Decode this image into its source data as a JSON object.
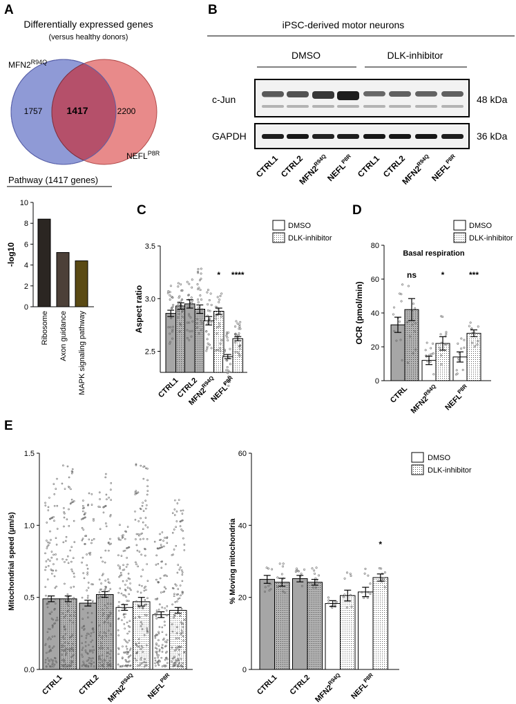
{
  "panel_letters": {
    "a": "A",
    "b": "B",
    "c": "C",
    "d": "D",
    "e": "E"
  },
  "colors": {
    "ctrl_bar": "#a6a6a6",
    "white_bar": "#ffffff",
    "venn_blue": "#8f9ad6",
    "venn_red": "#e88a8a",
    "venn_overlap": "#b5506a",
    "black": "#000000"
  },
  "panelA": {
    "title": "Differentially expressed genes",
    "subtitle": "(versus healthy donors)",
    "venn": {
      "left_label_base": "MFN2",
      "left_label_sup": "R94Q",
      "right_label_base": "NEFL",
      "right_label_sup": "P8R",
      "left_only": "1757",
      "overlap": "1417",
      "right_only": "2200"
    },
    "pathway_title": "Pathway (1417 genes)"
  },
  "panelB": {
    "header": "iPSC-derived motor neurons",
    "group1": "DMSO",
    "group2": "DLK-inhibitor",
    "blot1_label": "c-Jun",
    "blot1_size": "48 kDa",
    "blot2_label": "GAPDH",
    "blot2_size": "36 kDa",
    "lanes": [
      {
        "base": "CTRL1",
        "sup": ""
      },
      {
        "base": "CTRL2",
        "sup": ""
      },
      {
        "base": "MFN2",
        "sup": "R94Q"
      },
      {
        "base": "NEFL",
        "sup": "P8R"
      },
      {
        "base": "CTRL1",
        "sup": ""
      },
      {
        "base": "CTRL2",
        "sup": ""
      },
      {
        "base": "MFN2",
        "sup": "R94Q"
      },
      {
        "base": "NEFL",
        "sup": "P8R"
      }
    ],
    "cjun_intensity": [
      0.55,
      0.6,
      0.8,
      1.0,
      0.45,
      0.5,
      0.48,
      0.5
    ],
    "gapdh_intensity": [
      0.9,
      0.95,
      0.85,
      0.9,
      0.95,
      0.95,
      0.95,
      0.9
    ]
  },
  "legend": {
    "dmso": "DMSO",
    "dlk": "DLK-inhibitor"
  },
  "chart_data": [
    {
      "id": "A",
      "type": "bar",
      "ylabel": "-log10",
      "ylim": [
        0,
        10
      ],
      "yticks": [
        0,
        2,
        4,
        6,
        8,
        10
      ],
      "categories": [
        "Ribosome",
        "Axon guidance",
        "MAPK signaling pathway"
      ],
      "values": [
        8.4,
        5.2,
        4.4
      ],
      "bar_colors": [
        "#2b2622",
        "#4c4038",
        "#5a4a14"
      ]
    },
    {
      "id": "C",
      "type": "bar",
      "ylabel": "Aspect ratio",
      "ylim": [
        2.3,
        3.5
      ],
      "yticks": [
        2.5,
        3.0,
        3.5
      ],
      "categories": [
        {
          "base": "CTRL1",
          "sup": ""
        },
        {
          "base": "CTRL2",
          "sup": ""
        },
        {
          "base": "MFN2",
          "sup": "R94Q"
        },
        {
          "base": "NEFL",
          "sup": "P8R"
        }
      ],
      "series": [
        {
          "name": "DMSO",
          "values": [
            2.86,
            2.95,
            2.79,
            2.45
          ],
          "errors": [
            0.03,
            0.04,
            0.04,
            0.02
          ]
        },
        {
          "name": "DLK-inhibitor",
          "values": [
            2.93,
            2.9,
            2.88,
            2.62
          ],
          "errors": [
            0.03,
            0.04,
            0.03,
            0.02
          ]
        }
      ],
      "significance": [
        "",
        "",
        "*",
        "****"
      ],
      "point_ranges": [
        [
          2.55,
          3.15
        ],
        [
          2.65,
          3.15
        ],
        [
          2.6,
          3.2
        ],
        [
          2.65,
          3.3
        ],
        [
          2.5,
          3.1
        ],
        [
          2.5,
          3.05
        ],
        [
          2.15,
          2.7
        ],
        [
          2.45,
          2.8
        ]
      ]
    },
    {
      "id": "D",
      "type": "bar",
      "title": "Basal respiration",
      "ylabel": "OCR (pmol/min)",
      "ylim": [
        0,
        80
      ],
      "yticks": [
        0,
        20,
        40,
        60,
        80
      ],
      "categories": [
        {
          "base": "CTRL",
          "sup": ""
        },
        {
          "base": "MFN2",
          "sup": "R94Q"
        },
        {
          "base": "NEFL",
          "sup": "P8R"
        }
      ],
      "series": [
        {
          "name": "DMSO",
          "values": [
            33,
            12,
            14
          ],
          "errors": [
            4.5,
            2.5,
            3
          ]
        },
        {
          "name": "DLK-inhibitor",
          "values": [
            42,
            22,
            28
          ],
          "errors": [
            6.5,
            4,
            2
          ]
        }
      ],
      "significance": [
        "ns",
        "*",
        "***"
      ],
      "point_ranges": [
        [
          5,
          60
        ],
        [
          10,
          58
        ],
        [
          2,
          25
        ],
        [
          5,
          50
        ],
        [
          2,
          25
        ],
        [
          18,
          36
        ]
      ]
    },
    {
      "id": "E1",
      "type": "bar",
      "ylabel": "Mitochondrial speed (µm/s)",
      "ylim": [
        0,
        1.5
      ],
      "yticks": [
        0.0,
        0.5,
        1.0,
        1.5
      ],
      "categories": [
        {
          "base": "CTRL1",
          "sup": ""
        },
        {
          "base": "CTRL2",
          "sup": ""
        },
        {
          "base": "MFN2",
          "sup": "R94Q"
        },
        {
          "base": "NEFL",
          "sup": "P8R"
        }
      ],
      "series": [
        {
          "name": "DMSO",
          "values": [
            0.49,
            0.46,
            0.43,
            0.38
          ],
          "errors": [
            0.02,
            0.02,
            0.02,
            0.02
          ]
        },
        {
          "name": "DLK-inhibitor",
          "values": [
            0.49,
            0.52,
            0.47,
            0.41
          ],
          "errors": [
            0.02,
            0.02,
            0.03,
            0.02
          ]
        }
      ],
      "point_ranges": [
        [
          0.02,
          1.33
        ],
        [
          0.02,
          1.45
        ],
        [
          0.02,
          1.29
        ],
        [
          0.02,
          1.37
        ],
        [
          0.02,
          1.01
        ],
        [
          0.02,
          1.44
        ],
        [
          0.02,
          0.98
        ],
        [
          0.02,
          1.18
        ]
      ]
    },
    {
      "id": "E2",
      "type": "bar",
      "ylabel": "% Moving mitochondria",
      "ylim": [
        0,
        60
      ],
      "yticks": [
        0,
        20,
        40,
        60
      ],
      "categories": [
        {
          "base": "CTRL1",
          "sup": ""
        },
        {
          "base": "CTRL2",
          "sup": ""
        },
        {
          "base": "MFN2",
          "sup": "R94Q"
        },
        {
          "base": "NEFL",
          "sup": "P8R"
        }
      ],
      "series": [
        {
          "name": "DMSO",
          "values": [
            25,
            25.2,
            18.3,
            21.5
          ],
          "errors": [
            1.1,
            0.9,
            0.8,
            1.3
          ]
        },
        {
          "name": "DLK-inhibitor",
          "values": [
            24.2,
            24.2,
            20.5,
            25.5
          ],
          "errors": [
            1.1,
            0.8,
            1.5,
            1.0
          ]
        }
      ],
      "significance": [
        "",
        "",
        "",
        "*"
      ],
      "point_ranges": [
        [
          21,
          28.5
        ],
        [
          21,
          29.5
        ],
        [
          22.5,
          28
        ],
        [
          22,
          28.5
        ],
        [
          16.5,
          20
        ],
        [
          17,
          27.5
        ],
        [
          18,
          28
        ],
        [
          22.5,
          30
        ]
      ]
    }
  ]
}
